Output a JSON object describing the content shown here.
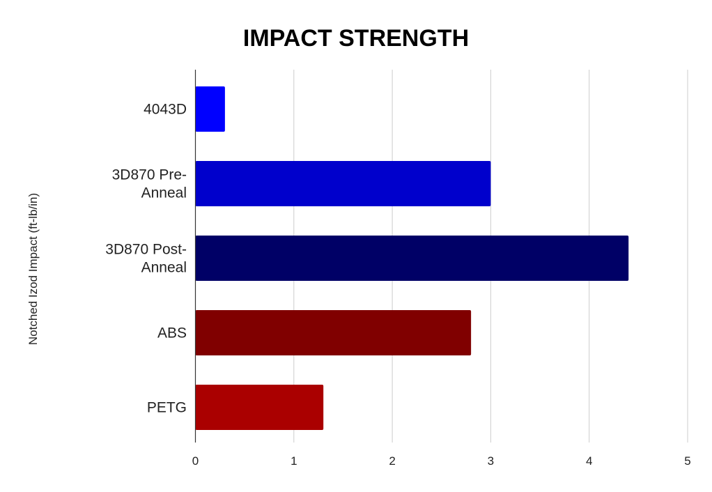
{
  "chart_data": {
    "type": "bar",
    "orientation": "horizontal",
    "title": "IMPACT STRENGTH",
    "xlabel": "",
    "ylabel": "Notched Izod Impact (ft-lb/in)",
    "categories": [
      [
        "4043D"
      ],
      [
        "3D870 Pre-",
        "Anneal"
      ],
      [
        "3D870 Post-",
        "Anneal"
      ],
      [
        "ABS"
      ],
      [
        "PETG"
      ]
    ],
    "values": [
      0.3,
      3.0,
      4.4,
      2.8,
      1.3
    ],
    "colors": [
      "#0000ff",
      "#0000cc",
      "#000066",
      "#800000",
      "#aa0000"
    ],
    "xlim": [
      0,
      5
    ],
    "xticks": [
      "0",
      "1",
      "2",
      "3",
      "4",
      "5"
    ],
    "grid": true,
    "legend": "none"
  }
}
